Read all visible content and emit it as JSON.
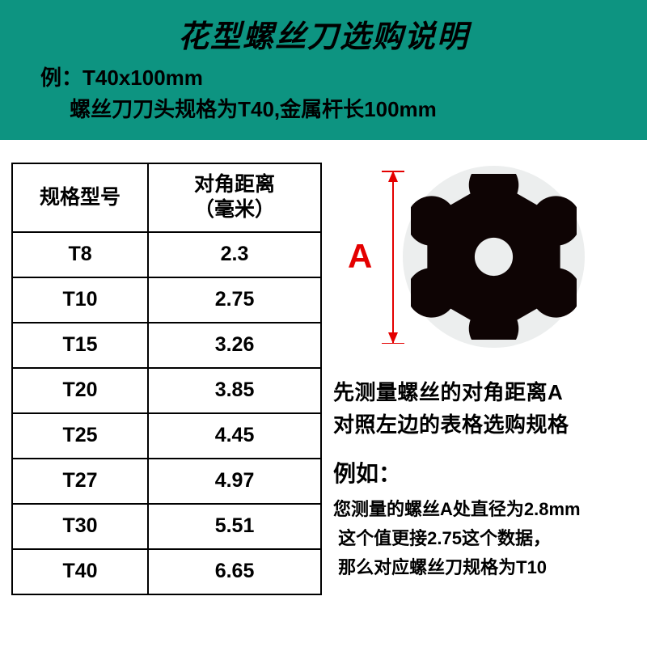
{
  "header": {
    "title": "花型螺丝刀选购说明",
    "example_label": "例：",
    "example_spec": "T40x100mm",
    "example_desc": "螺丝刀刀头规格为T40,金属杆长100mm",
    "bg_color": "#0d9481"
  },
  "table": {
    "col1_header": "规格型号",
    "col2_header": "对角距离\n（毫米）",
    "rows": [
      {
        "spec": "T8",
        "dist": "2.3"
      },
      {
        "spec": "T10",
        "dist": "2.75"
      },
      {
        "spec": "T15",
        "dist": "3.26"
      },
      {
        "spec": "T20",
        "dist": "3.85"
      },
      {
        "spec": "T25",
        "dist": "4.45"
      },
      {
        "spec": "T27",
        "dist": "4.97"
      },
      {
        "spec": "T30",
        "dist": "5.51"
      },
      {
        "spec": "T40",
        "dist": "6.65"
      }
    ]
  },
  "diagram": {
    "label": "A",
    "label_color": "#e40000",
    "torx_color": "#0e0404",
    "bg_circle_color": "#eceeee"
  },
  "instructions": {
    "line1": "先测量螺丝的对角距离A",
    "line2": "对照左边的表格选购规格",
    "example_label": "例如：",
    "example_line1": "您测量的螺丝A处直径为2.8mm",
    "example_line2": "这个值更接2.75这个数据，",
    "example_line3": "那么对应螺丝刀规格为T10"
  }
}
